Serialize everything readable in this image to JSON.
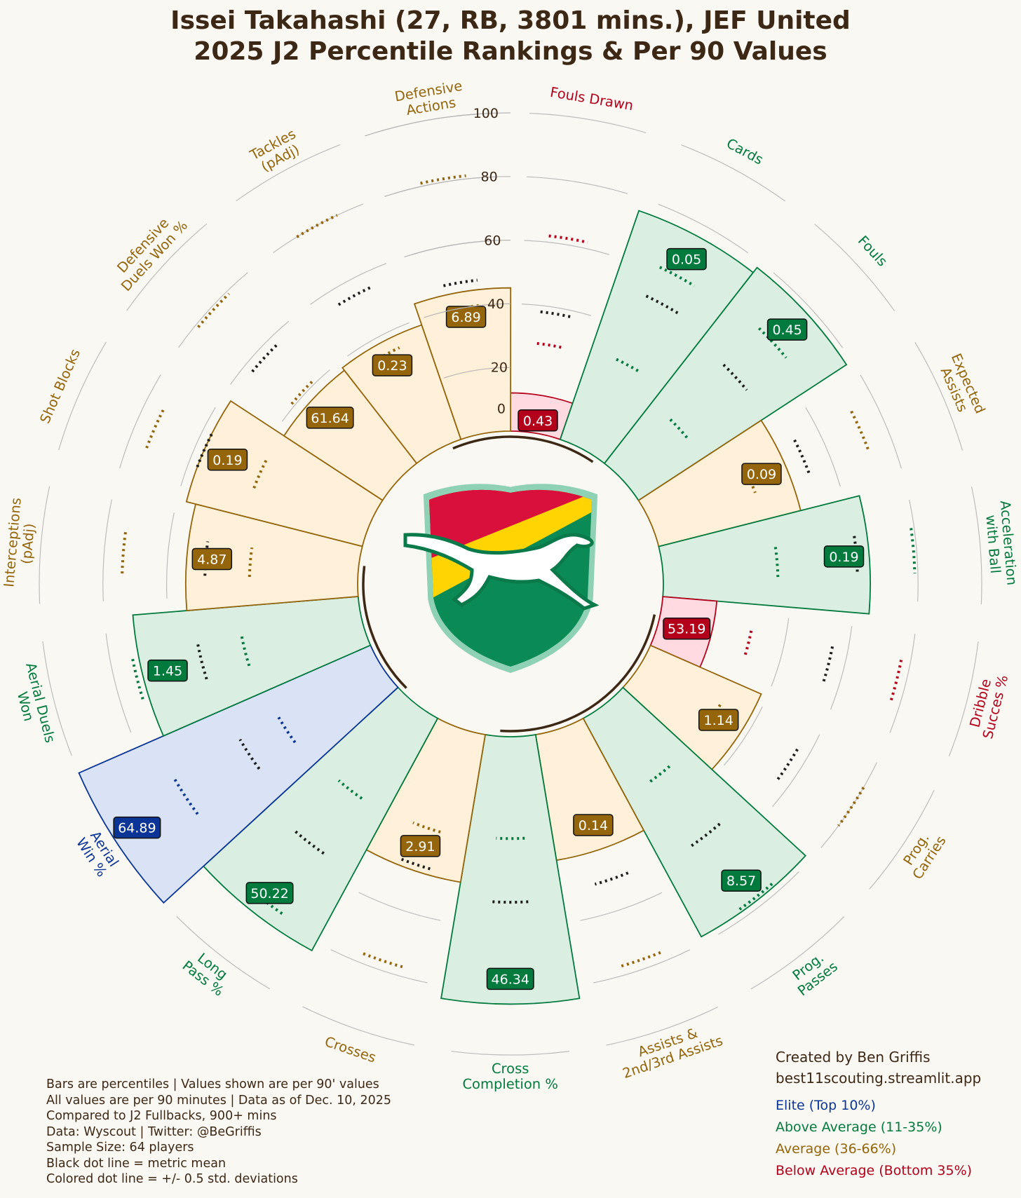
{
  "title_line1": "Issei Takahashi (27, RB, 3801 mins.), JEF United",
  "title_line2": "2025 J2 Percentile Rankings & Per 90 Values",
  "colors": {
    "elite": "#0a3596",
    "above": "#007a3d",
    "average": "#94650a",
    "below": "#b3001b",
    "background": "#faf8f3",
    "text": "#3d2816"
  },
  "chart_data": {
    "type": "polar-bar",
    "radial_ticks": [
      "0",
      "20",
      "40",
      "60",
      "80",
      "100"
    ],
    "radial_range": [
      0,
      100
    ],
    "metrics": [
      {
        "label": "Fouls Drawn",
        "percentile": 12,
        "value": "0.43",
        "tier": "below",
        "mean": 38,
        "dev": [
          28,
          62
        ]
      },
      {
        "label": "Cards",
        "percentile": 76,
        "value": "0.05",
        "tier": "above",
        "mean": 52,
        "dev": [
          30,
          62
        ]
      },
      {
        "label": "Fouls",
        "percentile": 78,
        "value": "0.45",
        "tier": "above",
        "mean": 48,
        "dev": [
          24,
          64
        ]
      },
      {
        "label": "Expected\nAssists",
        "percentile": 46,
        "value": "0.09",
        "tier": "average",
        "mean": 52,
        "dev": [
          34,
          72
        ]
      },
      {
        "label": "Acceleration\nwith Ball",
        "percentile": 65,
        "value": "0.19",
        "tier": "above",
        "mean": 61,
        "dev": [
          36,
          79
        ]
      },
      {
        "label": "Dribble\nSucces %",
        "percentile": 17,
        "value": "53.19",
        "tier": "below",
        "mean": 55,
        "dev": [
          29,
          77
        ]
      },
      {
        "label": "Prog.\nCarries",
        "percentile": 38,
        "value": "1.14",
        "tier": "average",
        "mean": 56,
        "dev": [
          28,
          80
        ]
      },
      {
        "label": "Prog.\nPasses",
        "percentile": 78,
        "value": "8.57",
        "tier": "above",
        "mean": 52,
        "dev": [
          28,
          77
        ]
      },
      {
        "label": "Assists &\n2nd/3rd Assists",
        "percentile": 40,
        "value": "0.14",
        "tier": "average",
        "mean": 50,
        "dev": [
          31,
          77
        ]
      },
      {
        "label": "Cross\nCompletion %",
        "percentile": 84,
        "value": "46.34",
        "tier": "above",
        "mean": 52,
        "dev": [
          32,
          78
        ]
      },
      {
        "label": "Crosses",
        "percentile": 47,
        "value": "2.91",
        "tier": "average",
        "mean": 45,
        "dev": [
          33,
          77
        ]
      },
      {
        "label": "Long\nPass %",
        "percentile": 83,
        "value": "50.22",
        "tier": "above",
        "mean": 55,
        "dev": [
          34,
          78
        ]
      },
      {
        "label": "Aerial\nWin %",
        "percentile": 100,
        "value": "64.89",
        "tier": "elite",
        "mean": 50,
        "dev": [
          36,
          74
        ]
      },
      {
        "label": "Aerial Duels\nWon",
        "percentile": 71,
        "value": "1.45",
        "tier": "above",
        "mean": 52,
        "dev": [
          38,
          73
        ]
      },
      {
        "label": "Interceptions\n(pAdj)",
        "percentile": 54,
        "value": "4.87",
        "tier": "average",
        "mean": 48,
        "dev": [
          34,
          74
        ]
      },
      {
        "label": "Shot Blocks",
        "percentile": 57,
        "value": "0.19",
        "tier": "average",
        "mean": 57,
        "dev": [
          38,
          74
        ]
      },
      {
        "label": "Defensive\nDuels Won %",
        "percentile": 37,
        "value": "61.64",
        "tier": "average",
        "mean": 57,
        "dev": [
          41,
          79
        ]
      },
      {
        "label": "Tackles\n(pAdj)",
        "percentile": 38,
        "value": "0.23",
        "tier": "average",
        "mean": 55,
        "dev": [
          34,
          80
        ]
      },
      {
        "label": "Defensive\nActions",
        "percentile": 45,
        "value": "6.89",
        "tier": "average",
        "mean": 48,
        "dev": [
          40,
          81
        ]
      }
    ]
  },
  "notes": [
    "Bars are percentiles | Values shown are per 90' values",
    "All values are per 90 minutes | Data as of Dec. 10, 2025",
    "Compared to J2 Fullbacks, 900+ mins",
    "Data: Wyscout | Twitter: @BeGriffis",
    "Sample Size: 64 players",
    "Black dot line = metric mean",
    "Colored dot line = +/- 0.5 std. deviations"
  ],
  "credits": [
    "Created by Ben Griffis",
    "best11scouting.streamlit.app"
  ],
  "legend": [
    {
      "label": "Elite (Top 10%)",
      "tier": "elite"
    },
    {
      "label": "Above Average (11-35%)",
      "tier": "above"
    },
    {
      "label": "Average (36-66%)",
      "tier": "average"
    },
    {
      "label": "Below Average (Bottom 35%)",
      "tier": "below"
    }
  ]
}
